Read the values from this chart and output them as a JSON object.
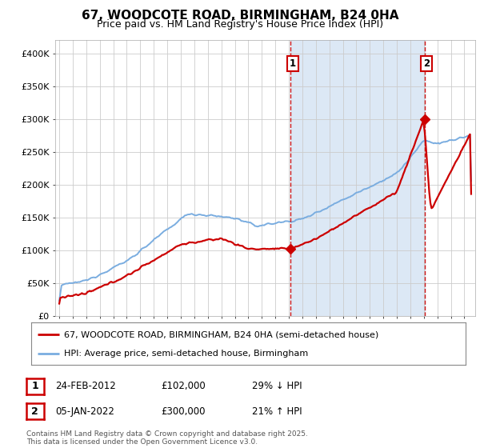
{
  "title": "67, WOODCOTE ROAD, BIRMINGHAM, B24 0HA",
  "subtitle": "Price paid vs. HM Land Registry's House Price Index (HPI)",
  "background_color": "#ffffff",
  "plot_bg_color": "#ffffff",
  "shade_color": "#dce8f5",
  "red_color": "#cc0000",
  "blue_color": "#7aade0",
  "vline_color": "#cc0000",
  "grid_color": "#cccccc",
  "ylim": [
    0,
    420000
  ],
  "yticks": [
    0,
    50000,
    100000,
    150000,
    200000,
    250000,
    300000,
    350000,
    400000
  ],
  "ytick_labels": [
    "£0",
    "£50K",
    "£100K",
    "£150K",
    "£200K",
    "£250K",
    "£300K",
    "£350K",
    "£400K"
  ],
  "sale1_year": 2012.12,
  "sale1_price": 102000,
  "sale2_year": 2022.04,
  "sale2_price": 300000,
  "legend_line1": "67, WOODCOTE ROAD, BIRMINGHAM, B24 0HA (semi-detached house)",
  "legend_line2": "HPI: Average price, semi-detached house, Birmingham",
  "table_row1": [
    "1",
    "24-FEB-2012",
    "£102,000",
    "29% ↓ HPI"
  ],
  "table_row2": [
    "2",
    "05-JAN-2022",
    "£300,000",
    "21% ↑ HPI"
  ],
  "footer": "Contains HM Land Registry data © Crown copyright and database right 2025.\nThis data is licensed under the Open Government Licence v3.0.",
  "title_fontsize": 11,
  "subtitle_fontsize": 9,
  "tick_fontsize": 8,
  "legend_fontsize": 8,
  "table_fontsize": 8.5,
  "footer_fontsize": 6.5
}
